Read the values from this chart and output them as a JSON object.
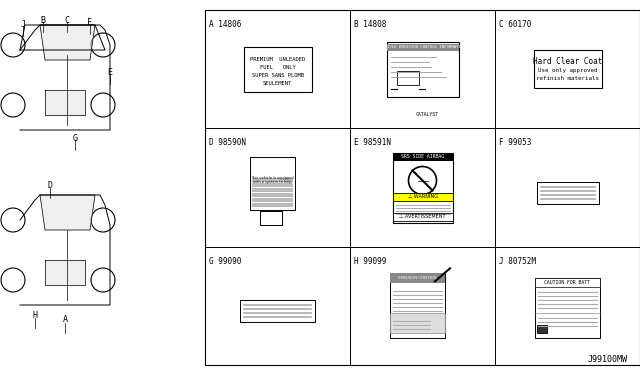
{
  "bg_color": "#ffffff",
  "border_color": "#000000",
  "line_color": "#000000",
  "gray_color": "#aaaaaa",
  "light_gray": "#cccccc",
  "dark_gray": "#888888",
  "diagram_label": "J99100MW",
  "cells": [
    {
      "id": "A",
      "part": "14806",
      "col": 0,
      "row": 0
    },
    {
      "id": "B",
      "part": "14808",
      "col": 1,
      "row": 0
    },
    {
      "id": "C",
      "part": "60170",
      "col": 2,
      "row": 0
    },
    {
      "id": "D",
      "part": "98590N",
      "col": 0,
      "row": 1
    },
    {
      "id": "E",
      "part": "98591N",
      "col": 1,
      "row": 1
    },
    {
      "id": "F",
      "part": "99053",
      "col": 2,
      "row": 1
    },
    {
      "id": "G",
      "part": "99090",
      "col": 0,
      "row": 2
    },
    {
      "id": "H",
      "part": "99099",
      "col": 1,
      "row": 2
    },
    {
      "id": "J",
      "part": "80752M",
      "col": 2,
      "row": 2
    }
  ],
  "car_label_top": [
    "J",
    "B",
    "C",
    "F"
  ],
  "car_label_mid": [
    "E"
  ],
  "car_label_bot": [
    "G"
  ],
  "car_label_bot2": [
    "D",
    "H",
    "A"
  ]
}
